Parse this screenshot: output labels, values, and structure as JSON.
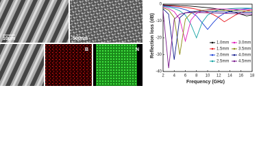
{
  "images": {
    "scale_a": "10μm",
    "scale_b": "500nm",
    "map_b": "B",
    "map_n": "N"
  },
  "chart_data": {
    "type": "line",
    "x_label": "Frequency (GHz)",
    "y_label": "Reflection loss (dB)",
    "x": [
      2,
      3,
      4,
      5,
      6,
      7,
      8,
      9,
      10,
      11,
      12,
      13,
      14,
      15,
      16,
      17,
      18
    ],
    "xlim": [
      2,
      18
    ],
    "xticks": [
      2,
      4,
      6,
      8,
      10,
      12,
      14,
      16,
      18
    ],
    "ylim": [
      -40,
      0
    ],
    "yticks": [
      0,
      -10,
      -20,
      -30,
      -40
    ],
    "legend": "lower right",
    "series": [
      {
        "name": "1.0mm",
        "color": "#000000",
        "values": [
          -0.5,
          -0.6,
          -0.7,
          -0.9,
          -1.0,
          -1.2,
          -1.5,
          -1.8,
          -2.1,
          -2.5,
          -3,
          -3.5,
          -4.2,
          -5,
          -6,
          -7,
          -6.5
        ]
      },
      {
        "name": "1.5mm",
        "color": "#e8161c",
        "values": [
          -0.8,
          -1,
          -1.2,
          -1.5,
          -1.9,
          -2.4,
          -3,
          -3.8,
          -4.8,
          -6.2,
          -8,
          -10.5,
          -8.5,
          -6.5,
          -5,
          -4,
          -3.3
        ]
      },
      {
        "name": "2.0mm",
        "color": "#1b3fd6",
        "values": [
          -1,
          -1.3,
          -1.8,
          -2.4,
          -3.3,
          -4.6,
          -7,
          -11,
          -15,
          -11,
          -7.5,
          -5.5,
          -4.3,
          -3.6,
          -3.1,
          -2.8,
          -2.5
        ]
      },
      {
        "name": "2.5mm",
        "color": "#14a3a3",
        "values": [
          -1.3,
          -1.8,
          -2.6,
          -4,
          -6.5,
          -12,
          -20,
          -11,
          -6.5,
          -4.6,
          -3.6,
          -3,
          -2.7,
          -2.5,
          -2.4,
          -2.4,
          -2.5
        ]
      },
      {
        "name": "3.0mm",
        "color": "#e01ab8",
        "values": [
          -1.8,
          -2.6,
          -4.5,
          -9,
          -22,
          -9.5,
          -5.5,
          -4,
          -3.3,
          -3,
          -2.9,
          -2.9,
          -3,
          -3.1,
          -3.2,
          -3.3,
          -3.4
        ]
      },
      {
        "name": "3.5mm",
        "color": "#8a8a10",
        "values": [
          -2.2,
          -3.5,
          -8,
          -30,
          -9,
          -5.5,
          -4.2,
          -3.7,
          -3.5,
          -3.5,
          -3.6,
          -3.7,
          -3.8,
          -3.9,
          -4,
          -4.1,
          -4.2
        ]
      },
      {
        "name": "4.0mm",
        "color": "#101a8a",
        "values": [
          -2.8,
          -6,
          -33,
          -8,
          -5.2,
          -4.5,
          -4.2,
          -4.2,
          -4.3,
          -4.4,
          -4.5,
          -4.6,
          -4.7,
          -4.8,
          -4.9,
          -5,
          -5
        ]
      },
      {
        "name": "4.5mm",
        "color": "#7a1a8c",
        "values": [
          -4,
          -38,
          -9,
          -6,
          -5.2,
          -5,
          -5,
          -5.1,
          -5.2,
          -5.3,
          -5.4,
          -5.5,
          -5.6,
          -5.7,
          -5.8,
          -5.9,
          -6
        ]
      }
    ]
  }
}
